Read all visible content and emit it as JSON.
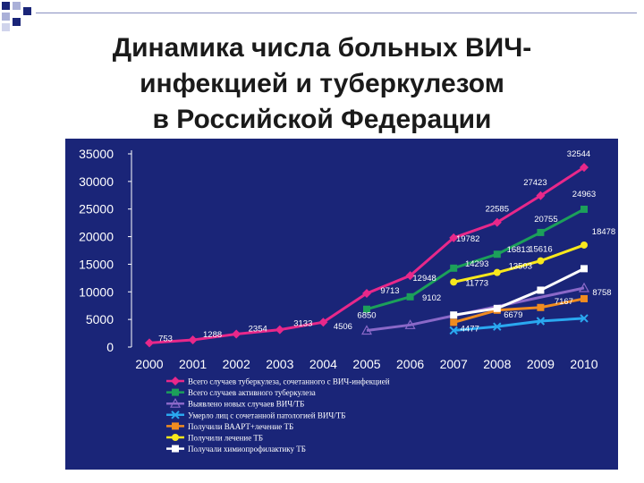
{
  "slide": {
    "title_lines": [
      "Динамика числа больных ВИЧ-",
      "инфекцией и туберкулезом",
      "в Российской Федерации"
    ]
  },
  "chart_data": {
    "type": "line",
    "title": "",
    "xlabel": "",
    "ylabel": "",
    "x": [
      "2000",
      "2001",
      "2002",
      "2003",
      "2004",
      "2005",
      "2006",
      "2007",
      "2008",
      "2009",
      "2010"
    ],
    "ylim": [
      0,
      35000
    ],
    "yticks": [
      0,
      5000,
      10000,
      15000,
      20000,
      25000,
      30000,
      35000
    ],
    "ytick_labels": [
      "0",
      "5000",
      "10000",
      "15000",
      "20000",
      "25000",
      "30000",
      "35000"
    ],
    "grid": false,
    "legend_position": "bottom",
    "series": [
      {
        "name": "Всего случаев туберкулеза, сочетанного с ВИЧ-инфекцией",
        "color": "#e8288a",
        "marker": "diamond",
        "values": [
          753,
          1288,
          2354,
          3133,
          4506,
          9713,
          12948,
          19782,
          22585,
          27423,
          32544
        ]
      },
      {
        "name": "Всего случаев активного туберкулеза",
        "color": "#1ca05a",
        "marker": "square",
        "values": [
          null,
          null,
          null,
          null,
          null,
          6850,
          9102,
          14293,
          16813,
          20755,
          24963
        ]
      },
      {
        "name": "Выявлено новых случаев ВИЧ/ТБ",
        "color": "#8a68c8",
        "marker": "triangle",
        "values": [
          null,
          null,
          null,
          null,
          null,
          3000,
          4000,
          null,
          null,
          null,
          10700
        ]
      },
      {
        "name": "Умерло лиц с сочетанной патологией ВИЧ/ТБ",
        "color": "#2aa8f0",
        "marker": "x",
        "values": [
          null,
          null,
          null,
          null,
          null,
          null,
          null,
          3000,
          3700,
          4700,
          5200
        ]
      },
      {
        "name": "Получили ВААРТ+лечение ТБ",
        "color": "#f08c20",
        "marker": "square",
        "values": [
          null,
          null,
          null,
          null,
          null,
          null,
          null,
          4477,
          6679,
          7167,
          8758
        ]
      },
      {
        "name": "Получили лечение ТБ",
        "color": "#f8e81c",
        "marker": "circle",
        "values": [
          null,
          null,
          null,
          null,
          null,
          null,
          null,
          11773,
          13503,
          15616,
          18478
        ]
      },
      {
        "name": "Получали химиопрофилактику ТБ",
        "color": "#ffffff",
        "marker": "square",
        "values": [
          null,
          null,
          null,
          null,
          null,
          null,
          null,
          5800,
          7000,
          10300,
          14200
        ]
      }
    ],
    "data_labels": [
      {
        "text": "753",
        "year": "2000",
        "value": 753
      },
      {
        "text": "1288",
        "year": "2001",
        "value": 1288
      },
      {
        "text": "2354",
        "year": "2002",
        "value": 2354
      },
      {
        "text": "3133",
        "year": "2003",
        "value": 3133
      },
      {
        "text": "4506",
        "year": "2004",
        "value": 4506
      },
      {
        "text": "9713",
        "year": "2005",
        "value": 9713
      },
      {
        "text": "6850",
        "year": "2005",
        "value": 6850
      },
      {
        "text": "12948",
        "year": "2006",
        "value": 12948
      },
      {
        "text": "9102",
        "year": "2006",
        "value": 9102
      },
      {
        "text": "19782",
        "year": "2007",
        "value": 19782
      },
      {
        "text": "14293",
        "year": "2007",
        "value": 14293
      },
      {
        "text": "11773",
        "year": "2007",
        "value": 11773
      },
      {
        "text": "4477",
        "year": "2007",
        "value": 4477
      },
      {
        "text": "22585",
        "year": "2008",
        "value": 22585
      },
      {
        "text": "16813",
        "year": "2008",
        "value": 16813
      },
      {
        "text": "13503",
        "year": "2008",
        "value": 13503
      },
      {
        "text": "6679",
        "year": "2008",
        "value": 6679
      },
      {
        "text": "27423",
        "year": "2009",
        "value": 27423
      },
      {
        "text": "20755",
        "year": "2009",
        "value": 20755
      },
      {
        "text": "15616",
        "year": "2009",
        "value": 15616
      },
      {
        "text": "7167",
        "year": "2009",
        "value": 7167
      },
      {
        "text": "32544",
        "year": "2010",
        "value": 32544
      },
      {
        "text": "24963",
        "year": "2010",
        "value": 24963
      },
      {
        "text": "18478",
        "year": "2010",
        "value": 18478
      },
      {
        "text": "8758",
        "year": "2010",
        "value": 8758
      }
    ]
  }
}
